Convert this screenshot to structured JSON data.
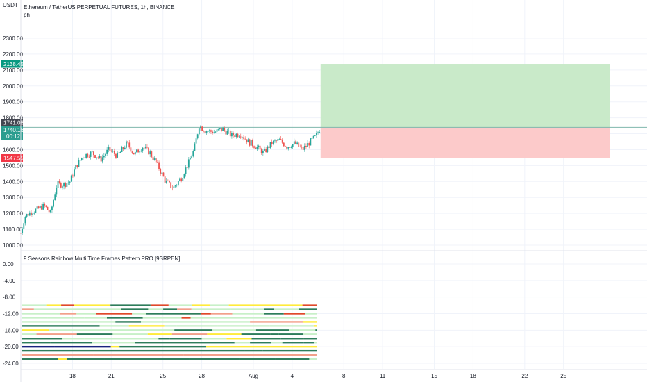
{
  "header": {
    "symbol_title": "Ethereum / TetherUS PERPETUAL FUTURES, 1h, BINANCE",
    "sub_label": "ph",
    "currency": "USDT",
    "indicator_title": "9 Seasons Rainbow Multi Time Frames Pattern PRO [9SRPEN]"
  },
  "colors": {
    "up": "#26a69a",
    "down": "#ef5350",
    "target_zone": "#c9eac9",
    "stop_zone": "#fccaca",
    "target_tag": "#089981",
    "stop_tag": "#f23645",
    "price_tag": "#2a9d8f",
    "mark_tag": "#434651"
  },
  "chart_data": [
    {
      "type": "candlestick",
      "title": "Ethereum / TetherUS PERPETUAL FUTURES, 1h, BINANCE",
      "ylabel": "USDT",
      "ylim": [
        1000,
        2300
      ],
      "y_ticks": [
        "2300.00",
        "2200.00",
        "2100.00",
        "2000.00",
        "1900.00",
        "1800.00",
        "1700.00",
        "1600.00",
        "1500.00",
        "1400.00",
        "1300.00",
        "1200.00",
        "1100.00",
        "1000.00"
      ],
      "x_ticks": [
        "18",
        "21",
        "25",
        "28",
        "Aug",
        "4",
        "8",
        "11",
        "15",
        "18",
        "22",
        "25"
      ],
      "close_path": [
        [
          14.0,
          1075
        ],
        [
          14.3,
          1180
        ],
        [
          14.8,
          1210
        ],
        [
          15.3,
          1225
        ],
        [
          15.8,
          1250
        ],
        [
          16.3,
          1200
        ],
        [
          16.8,
          1385
        ],
        [
          17.3,
          1380
        ],
        [
          17.8,
          1400
        ],
        [
          18.3,
          1500
        ],
        [
          18.8,
          1560
        ],
        [
          19.5,
          1580
        ],
        [
          20.2,
          1540
        ],
        [
          20.8,
          1600
        ],
        [
          21.5,
          1560
        ],
        [
          22.2,
          1640
        ],
        [
          22.8,
          1570
        ],
        [
          23.4,
          1620
        ],
        [
          24.0,
          1580
        ],
        [
          24.6,
          1500
        ],
        [
          25.2,
          1400
        ],
        [
          25.8,
          1360
        ],
        [
          26.4,
          1420
        ],
        [
          27.0,
          1520
        ],
        [
          27.4,
          1600
        ],
        [
          27.8,
          1750
        ],
        [
          28.3,
          1720
        ],
        [
          29.0,
          1710
        ],
        [
          29.6,
          1730
        ],
        [
          30.3,
          1690
        ],
        [
          31.0,
          1700
        ],
        [
          31.6,
          1650
        ],
        [
          32.2,
          1620
        ],
        [
          32.8,
          1580
        ],
        [
          33.4,
          1640
        ],
        [
          34.0,
          1660
        ],
        [
          34.6,
          1620
        ],
        [
          35.2,
          1640
        ],
        [
          35.8,
          1600
        ],
        [
          36.4,
          1650
        ],
        [
          36.8,
          1680
        ],
        [
          37.2,
          1740
        ]
      ],
      "current_price": "1740.16",
      "price_tag_secondary": "00:12",
      "mark_price": "1741.08",
      "target_price": "2138.45",
      "stop_price": "1547.55",
      "position_zone": {
        "start_day": 37.2,
        "end_day": 59.6,
        "entry": 1740.16,
        "target": 2138.45,
        "stop": 1547.55
      }
    },
    {
      "type": "heatmap",
      "title": "9 Seasons Rainbow Multi Time Frames Pattern PRO [9SRPEN]",
      "ylim": [
        -25,
        1
      ],
      "y_ticks": [
        "0.00",
        "-4.00",
        "-8.00",
        "-12.00",
        "-16.00",
        "-20.00",
        "-24.00"
      ],
      "rows": [
        -10,
        -11,
        -12,
        -13,
        -14,
        -15,
        -16,
        -17,
        -18,
        -19,
        -20,
        -21,
        -22,
        -23
      ],
      "palette": [
        "#2e7d5b",
        "#c8f0c8",
        "#ffeb3b",
        "#e0492b",
        "#f2a08a",
        "#1a237e"
      ]
    }
  ]
}
